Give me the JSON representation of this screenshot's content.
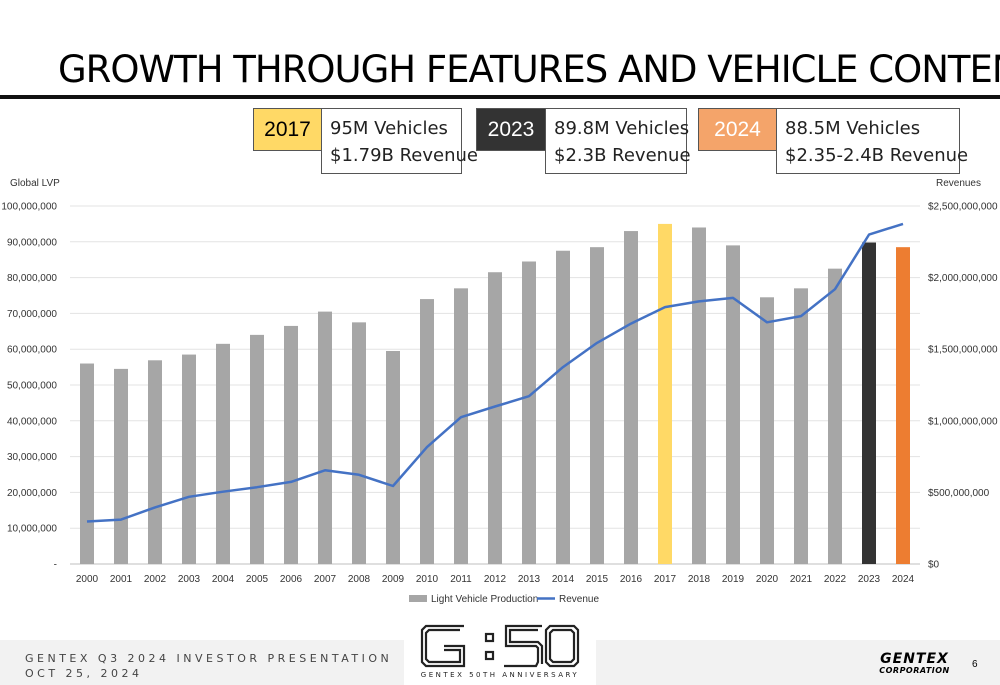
{
  "title": "GROWTH THROUGH FEATURES AND VEHICLE CONTENT",
  "callouts": [
    {
      "year": "2017",
      "line1": "95M Vehicles",
      "line2": "$1.79B Revenue",
      "color": "#FFD966"
    },
    {
      "year": "2023",
      "line1": "89.8M Vehicles",
      "line2": "$2.3B Revenue",
      "color": "#333333"
    },
    {
      "year": "2024",
      "line1": "88.5M Vehicles",
      "line2": "$2.35-2.4B Revenue",
      "color": "#F4A46A"
    }
  ],
  "chart_data": {
    "type": "bar",
    "title": "",
    "left_axis_label": "Global LVP",
    "right_axis_label": "Revenues",
    "categories": [
      "2000",
      "2001",
      "2002",
      "2003",
      "2004",
      "2005",
      "2006",
      "2007",
      "2008",
      "2009",
      "2010",
      "2011",
      "2012",
      "2013",
      "2014",
      "2015",
      "2016",
      "2017",
      "2018",
      "2019",
      "2020",
      "2021",
      "2022",
      "2023",
      "2024"
    ],
    "left_ylim": [
      0,
      100000000
    ],
    "right_ylim": [
      0,
      2500000000
    ],
    "left_ticks": [
      "-",
      "10,000,000",
      "20,000,000",
      "30,000,000",
      "40,000,000",
      "50,000,000",
      "60,000,000",
      "70,000,000",
      "80,000,000",
      "90,000,000",
      "100,000,000"
    ],
    "right_ticks": [
      "$0",
      "$500,000,000",
      "$1,000,000,000",
      "$1,500,000,000",
      "$2,000,000,000",
      "$2,500,000,000"
    ],
    "grid": true,
    "legend_position": "bottom",
    "series": [
      {
        "name": "Light Vehicle Production",
        "type": "bar",
        "axis": "left",
        "color": "#A6A6A6",
        "highlight_colors": {
          "2017": "#FFD966",
          "2023": "#333333",
          "2024": "#ED7D31"
        },
        "values": [
          56000000,
          54500000,
          56900000,
          58500000,
          61500000,
          64000000,
          66500000,
          70500000,
          67500000,
          59500000,
          74000000,
          77000000,
          81500000,
          84500000,
          87500000,
          88500000,
          93000000,
          95000000,
          94000000,
          89000000,
          74500000,
          77000000,
          82500000,
          89800000,
          88500000
        ]
      },
      {
        "name": "Revenue",
        "type": "line",
        "axis": "right",
        "color": "#4472C4",
        "values": [
          297000000,
          310000000,
          395000000,
          469000000,
          505000000,
          536000000,
          573000000,
          654000000,
          623000000,
          545000000,
          816000000,
          1025000000,
          1100000000,
          1172000000,
          1375000000,
          1544000000,
          1679000000,
          1794000000,
          1834000000,
          1858000000,
          1688000000,
          1731000000,
          1919000000,
          2300000000,
          2375000000
        ]
      }
    ]
  },
  "footer": {
    "line1": "GENTEX Q3 2024 INVESTOR PRESENTATION",
    "line2": "OCT 25, 2024",
    "logo_subtitle": "GENTEX 50TH ANNIVERSARY",
    "brand_name": "GENTEX",
    "brand_sub": "CORPORATION",
    "page_number": "6"
  }
}
